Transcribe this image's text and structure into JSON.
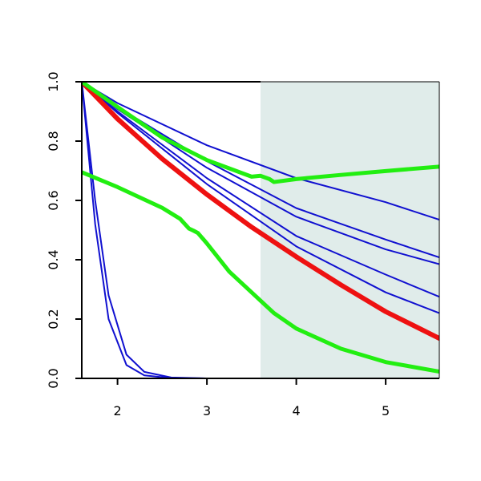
{
  "chart_data": {
    "type": "line",
    "title": "",
    "xlabel": "",
    "ylabel": "",
    "xlim": [
      1.6,
      5.6
    ],
    "ylim": [
      0.0,
      1.0
    ],
    "x_ticks": [
      2,
      3,
      4,
      5
    ],
    "y_ticks": [
      0.0,
      0.2,
      0.4,
      0.6,
      0.8,
      1.0
    ],
    "x_tick_labels": [
      "2",
      "3",
      "4",
      "5"
    ],
    "y_tick_labels": [
      "0.0",
      "0.2",
      "0.4",
      "0.6",
      "0.8",
      "1.0"
    ],
    "grid": false,
    "shaded_region": {
      "x_from": 3.6,
      "x_to": 5.6,
      "color": "#e0ecea"
    },
    "series": [
      {
        "color": "#1010d0",
        "width": 2,
        "x": [
          1.6,
          2.0,
          3.0,
          4.0,
          5.0,
          5.6
        ],
        "y": [
          1.0,
          0.928,
          0.786,
          0.675,
          0.594,
          0.535
        ]
      },
      {
        "color": "#1010d0",
        "width": 2,
        "x": [
          1.6,
          2.0,
          3.0,
          4.0,
          5.0,
          5.6
        ],
        "y": [
          1.0,
          0.915,
          0.732,
          0.574,
          0.468,
          0.408
        ]
      },
      {
        "color": "#1010d0",
        "width": 2,
        "x": [
          1.6,
          2.0,
          3.0,
          4.0,
          5.0,
          5.6
        ],
        "y": [
          1.0,
          0.908,
          0.71,
          0.545,
          0.435,
          0.385
        ]
      },
      {
        "color": "#1010d0",
        "width": 2,
        "x": [
          1.6,
          2.0,
          3.0,
          4.0,
          5.0,
          5.6
        ],
        "y": [
          1.0,
          0.9,
          0.675,
          0.48,
          0.35,
          0.275
        ]
      },
      {
        "color": "#1010d0",
        "width": 2,
        "x": [
          1.6,
          2.0,
          3.0,
          4.0,
          5.0,
          5.6
        ],
        "y": [
          1.0,
          0.895,
          0.655,
          0.445,
          0.29,
          0.22
        ]
      },
      {
        "color": "#1010d0",
        "width": 2,
        "x": [
          1.6,
          1.75,
          1.9,
          2.1,
          2.3,
          2.6,
          3.0,
          5.6
        ],
        "y": [
          1.0,
          0.52,
          0.2,
          0.045,
          0.01,
          0.001,
          0.0,
          0.0
        ]
      },
      {
        "color": "#1010d0",
        "width": 2,
        "x": [
          1.6,
          1.75,
          1.9,
          2.1,
          2.3,
          2.6,
          3.0,
          5.6
        ],
        "y": [
          1.0,
          0.6,
          0.28,
          0.08,
          0.022,
          0.003,
          0.0,
          0.0
        ]
      },
      {
        "color": "#ee1111",
        "width": 6,
        "x": [
          1.6,
          2.0,
          2.5,
          3.0,
          3.5,
          4.0,
          4.5,
          5.0,
          5.6
        ],
        "y": [
          1.0,
          0.875,
          0.74,
          0.62,
          0.51,
          0.41,
          0.315,
          0.225,
          0.135
        ]
      },
      {
        "color": "#22ee11",
        "width": 5,
        "x": [
          1.6,
          2.0,
          2.5,
          3.0,
          3.5,
          3.6,
          3.7,
          3.75,
          4.0,
          4.5,
          5.0,
          5.6
        ],
        "y": [
          1.0,
          0.915,
          0.812,
          0.736,
          0.68,
          0.683,
          0.672,
          0.662,
          0.672,
          0.686,
          0.699,
          0.714
        ]
      },
      {
        "color": "#22ee11",
        "width": 5,
        "x": [
          1.6,
          2.0,
          2.5,
          2.7,
          2.8,
          2.85,
          2.9,
          3.0,
          3.25,
          3.5,
          3.75,
          4.0,
          4.5,
          5.0,
          5.6
        ],
        "y": [
          0.695,
          0.645,
          0.575,
          0.538,
          0.505,
          0.498,
          0.49,
          0.455,
          0.36,
          0.29,
          0.22,
          0.168,
          0.1,
          0.055,
          0.023
        ]
      }
    ]
  }
}
